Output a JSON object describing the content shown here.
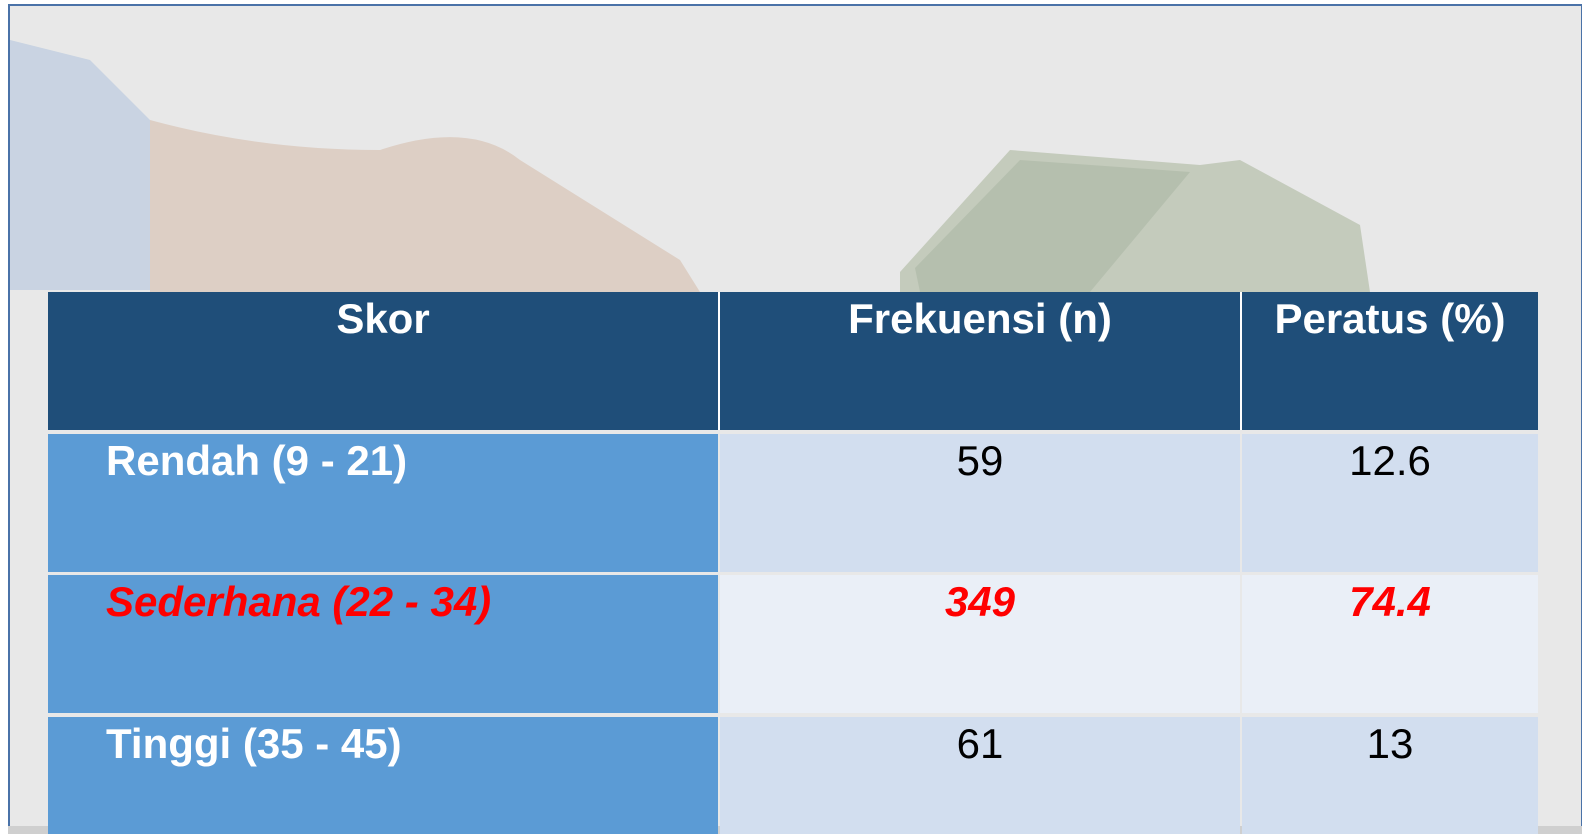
{
  "table": {
    "header": [
      "Skor",
      "Frekuensi (n)",
      "Peratus (%)"
    ],
    "rows": [
      [
        "Rendah (9 - 21)",
        "59",
        "12.6"
      ],
      [
        "Sederhana (22 - 34)",
        "349",
        "74.4"
      ],
      [
        "Tinggi (35 - 45)",
        "61",
        "13"
      ]
    ]
  }
}
